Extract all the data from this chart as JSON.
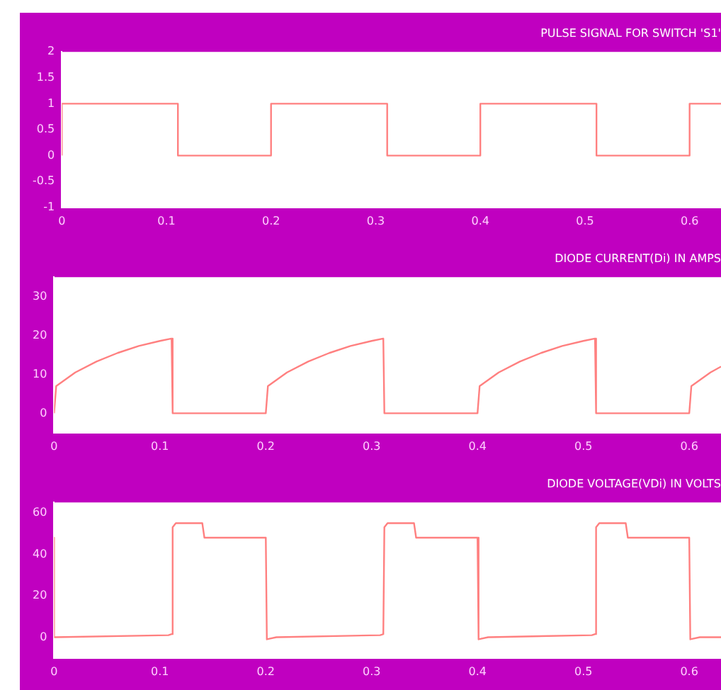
{
  "chart_data": [
    {
      "type": "line",
      "title": "PULSE SIGNAL FOR SWITCH 'S1'",
      "xlim": [
        0,
        0.63
      ],
      "xticks": [
        0,
        0.1,
        0.2,
        0.3,
        0.4,
        0.5,
        0.6
      ],
      "ylim": [
        -1,
        2
      ],
      "yticks": [
        -1,
        -0.5,
        0,
        0.5,
        1,
        1.5,
        2
      ],
      "grid": false,
      "legend": false,
      "marker": "none",
      "line_style": "solid",
      "series": [
        {
          "color": "#ff8080",
          "x": [
            0,
            0,
            0.111,
            0.111,
            0.2,
            0.2,
            0.311,
            0.311,
            0.4,
            0.4,
            0.511,
            0.511,
            0.6,
            0.6,
            0.63
          ],
          "values": [
            0,
            1,
            1,
            0,
            0,
            1,
            1,
            0,
            0,
            1,
            1,
            0,
            0,
            1,
            1
          ]
        }
      ]
    },
    {
      "type": "line",
      "title": "DIODE CURRENT(Di) IN AMPS",
      "xlim": [
        0,
        0.63
      ],
      "xticks": [
        0,
        0.1,
        0.2,
        0.3,
        0.4,
        0.5,
        0.6
      ],
      "ylim": [
        -5,
        35
      ],
      "yticks": [
        0,
        10,
        20,
        30
      ],
      "grid": false,
      "legend": false,
      "marker": "none",
      "line_style": "solid",
      "series": [
        {
          "color": "#ff8080",
          "x": [
            0,
            0.002,
            0.02,
            0.04,
            0.06,
            0.08,
            0.1,
            0.111,
            0.112,
            0.2,
            0.202,
            0.22,
            0.24,
            0.26,
            0.28,
            0.3,
            0.311,
            0.312,
            0.4,
            0.402,
            0.42,
            0.44,
            0.46,
            0.48,
            0.5,
            0.511,
            0.512,
            0.6,
            0.602,
            0.62,
            0.63
          ],
          "values": [
            0,
            7,
            10.5,
            13.3,
            15.5,
            17.3,
            18.6,
            19.2,
            0,
            0,
            7,
            10.5,
            13.3,
            15.5,
            17.3,
            18.6,
            19.2,
            0,
            0,
            7,
            10.5,
            13.3,
            15.5,
            17.3,
            18.6,
            19.2,
            0,
            0,
            7,
            10.5,
            12
          ]
        }
      ]
    },
    {
      "type": "line",
      "title": "DIODE VOLTAGE(VDi) IN VOLTS",
      "xlim": [
        0,
        0.63
      ],
      "xticks": [
        0,
        0.1,
        0.2,
        0.3,
        0.4,
        0.5,
        0.6
      ],
      "ylim": [
        -10,
        65
      ],
      "yticks": [
        0,
        20,
        40,
        60
      ],
      "grid": false,
      "legend": false,
      "marker": "none",
      "line_style": "solid",
      "series": [
        {
          "color": "#ff8080",
          "x": [
            0,
            0,
            0.108,
            0.111,
            0.112,
            0.115,
            0.14,
            0.142,
            0.2,
            0.201,
            0.21,
            0.308,
            0.311,
            0.312,
            0.315,
            0.34,
            0.342,
            0.4,
            0.401,
            0.41,
            0.508,
            0.511,
            0.512,
            0.515,
            0.54,
            0.542,
            0.6,
            0.601,
            0.61,
            0.63
          ],
          "values": [
            48,
            0,
            1,
            1.5,
            53,
            55,
            55,
            48,
            48,
            -1,
            0,
            1,
            1.5,
            53,
            55,
            55,
            48,
            48,
            -1,
            0,
            1,
            1.5,
            53,
            55,
            55,
            48,
            48,
            -1,
            0,
            0
          ]
        }
      ]
    }
  ]
}
